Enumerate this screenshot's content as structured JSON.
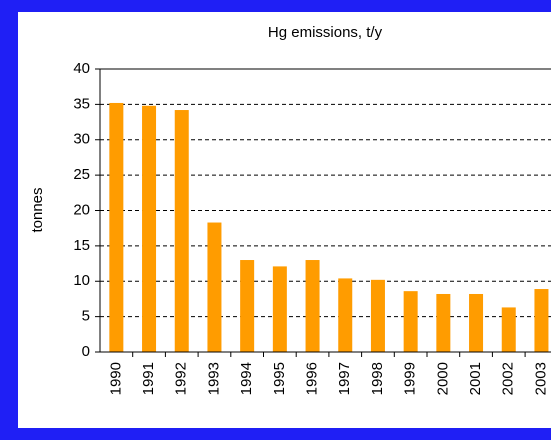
{
  "chart_data": {
    "type": "bar",
    "title": "Hg emissions, t/y",
    "ylabel": "tonnes",
    "categories": [
      "1990",
      "1991",
      "1992",
      "1993",
      "1994",
      "1995",
      "1996",
      "1997",
      "1998",
      "1999",
      "2000",
      "2001",
      "2002",
      "2003"
    ],
    "values": [
      35.2,
      34.8,
      34.2,
      18.3,
      13,
      12.1,
      13,
      10.4,
      10.2,
      8.6,
      8.2,
      8.2,
      6.3,
      8.9
    ],
    "color": "#ff9c00",
    "ylim": [
      0,
      40
    ],
    "yticks": [
      0,
      5,
      10,
      15,
      20,
      25,
      30,
      35,
      40
    ],
    "grid": true
  }
}
